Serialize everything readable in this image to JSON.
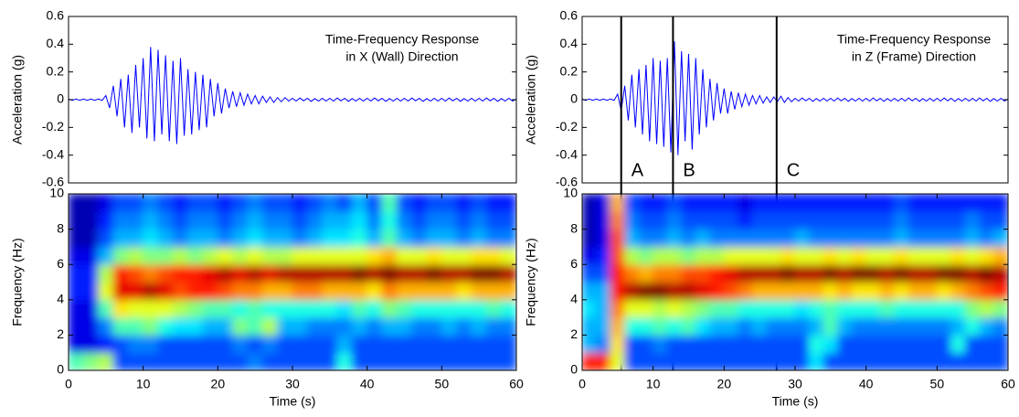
{
  "chart_data": [
    {
      "type": "line",
      "title": [
        "Time-Frequency Response",
        "in X (Wall) Direction"
      ],
      "ylabel": "Acceleration (g)",
      "color": "#0000ff",
      "xlim": [
        0,
        60
      ],
      "ylim": [
        -0.6,
        0.6
      ],
      "yticks": [
        -0.6,
        -0.4,
        -0.2,
        0,
        0.2,
        0.4,
        0.6
      ],
      "x": [
        0,
        0.5,
        1,
        1.5,
        2,
        2.5,
        3,
        3.5,
        4,
        4.5,
        5,
        5.5,
        6,
        6.5,
        7,
        7.5,
        8,
        8.5,
        9,
        9.5,
        10,
        10.5,
        11,
        11.5,
        12,
        12.5,
        13,
        13.5,
        14,
        14.5,
        15,
        15.5,
        16,
        16.5,
        17,
        17.5,
        18,
        18.5,
        19,
        19.5,
        20,
        20.5,
        21,
        21.5,
        22,
        22.5,
        23,
        23.5,
        24,
        24.5,
        25,
        25.5,
        26,
        26.5,
        27,
        27.5,
        28,
        28.5,
        29,
        29.5,
        30,
        30.5,
        31,
        31.5,
        32,
        32.5,
        33,
        33.5,
        34,
        34.5,
        35,
        35.5,
        36,
        36.5,
        37,
        37.5,
        38,
        38.5,
        39,
        39.5,
        40,
        40.5,
        41,
        41.5,
        42,
        42.5,
        43,
        43.5,
        44,
        44.5,
        45,
        45.5,
        46,
        46.5,
        47,
        47.5,
        48,
        48.5,
        49,
        49.5,
        50,
        50.5,
        51,
        51.5,
        52,
        52.5,
        53,
        53.5,
        54,
        54.5,
        55,
        55.5,
        56,
        56.5,
        57,
        57.5,
        58,
        58.5,
        59,
        59.5,
        60
      ],
      "values": [
        0.005,
        -0.005,
        0.005,
        -0.005,
        0.005,
        -0.005,
        0.005,
        -0.005,
        0.005,
        -0.005,
        0.03,
        -0.06,
        0.1,
        -0.12,
        0.15,
        -0.2,
        0.18,
        -0.24,
        0.25,
        -0.2,
        0.3,
        -0.28,
        0.38,
        -0.3,
        0.36,
        -0.25,
        0.32,
        -0.3,
        0.28,
        -0.32,
        0.3,
        -0.26,
        0.22,
        -0.25,
        0.2,
        -0.22,
        0.18,
        -0.2,
        0.15,
        -0.12,
        0.12,
        -0.1,
        0.08,
        -0.06,
        0.06,
        -0.05,
        0.05,
        -0.04,
        0.04,
        -0.03,
        0.03,
        -0.03,
        0.025,
        -0.02,
        0.02,
        -0.02,
        0.015,
        -0.015,
        0.015,
        -0.01,
        0.01,
        -0.01,
        0.012,
        -0.008,
        0.01,
        -0.012,
        0.008,
        -0.01,
        0.01,
        -0.01,
        0.01,
        -0.01,
        0.012,
        -0.008,
        0.01,
        -0.012,
        0.008,
        -0.01,
        0.01,
        -0.01,
        0.01,
        -0.01,
        0.012,
        -0.008,
        0.01,
        -0.012,
        0.008,
        -0.01,
        0.01,
        -0.01,
        0.01,
        -0.01,
        0.012,
        -0.008,
        0.01,
        -0.012,
        0.008,
        -0.01,
        0.01,
        -0.01,
        0.01,
        -0.01,
        0.012,
        -0.008,
        0.01,
        -0.012,
        0.008,
        -0.01,
        0.01,
        -0.01,
        0.01,
        -0.01,
        0.012,
        -0.008,
        0.01,
        -0.012,
        0.008,
        -0.01,
        0.01,
        -0.01,
        0.005
      ]
    },
    {
      "type": "heatmap",
      "ylabel": "Frequency (Hz)",
      "xlabel": "Time (s)",
      "colormap": "jet",
      "xlim": [
        0,
        60
      ],
      "ylim": [
        0,
        10
      ],
      "xticks": [
        0,
        10,
        20,
        30,
        40,
        50,
        60
      ],
      "yticks": [
        0,
        2,
        4,
        6,
        8,
        10
      ],
      "x_bins": [
        0,
        2,
        4,
        6,
        8,
        10,
        12,
        14,
        16,
        18,
        20,
        22,
        24,
        26,
        28,
        30,
        32,
        34,
        36,
        38,
        40,
        42,
        44,
        46,
        48,
        50,
        52,
        54,
        56,
        58,
        60
      ],
      "y_bins": [
        0,
        1,
        2,
        3,
        4,
        5,
        6,
        7,
        8,
        9,
        10
      ],
      "z": [
        [
          0.45,
          0.5,
          0.55,
          0.2,
          0.2,
          0.2,
          0.2,
          0.2,
          0.2,
          0.2,
          0.2,
          0.2,
          0.25,
          0.2,
          0.2,
          0.2,
          0.2,
          0.2,
          0.4,
          0.2,
          0.2,
          0.2,
          0.2,
          0.2,
          0.2,
          0.2,
          0.2,
          0.2,
          0.2,
          0.2
        ],
        [
          0.1,
          0.1,
          0.15,
          0.2,
          0.25,
          0.25,
          0.2,
          0.2,
          0.2,
          0.2,
          0.2,
          0.25,
          0.2,
          0.25,
          0.2,
          0.2,
          0.2,
          0.2,
          0.3,
          0.2,
          0.2,
          0.2,
          0.2,
          0.2,
          0.2,
          0.2,
          0.2,
          0.2,
          0.2,
          0.2
        ],
        [
          0.1,
          0.1,
          0.25,
          0.45,
          0.45,
          0.5,
          0.4,
          0.35,
          0.35,
          0.3,
          0.3,
          0.5,
          0.45,
          0.55,
          0.3,
          0.3,
          0.25,
          0.25,
          0.25,
          0.3,
          0.25,
          0.3,
          0.3,
          0.25,
          0.25,
          0.3,
          0.25,
          0.3,
          0.25,
          0.25
        ],
        [
          0.1,
          0.1,
          0.45,
          0.65,
          0.6,
          0.6,
          0.6,
          0.55,
          0.5,
          0.45,
          0.45,
          0.4,
          0.45,
          0.4,
          0.4,
          0.4,
          0.4,
          0.4,
          0.35,
          0.45,
          0.4,
          0.5,
          0.45,
          0.4,
          0.4,
          0.4,
          0.4,
          0.4,
          0.45,
          0.4
        ],
        [
          0.15,
          0.15,
          0.6,
          0.9,
          0.9,
          0.95,
          0.9,
          0.8,
          0.85,
          0.85,
          0.8,
          0.75,
          0.75,
          0.7,
          0.7,
          0.75,
          0.75,
          0.7,
          0.7,
          0.7,
          0.65,
          0.75,
          0.7,
          0.7,
          0.7,
          0.7,
          0.65,
          0.7,
          0.7,
          0.7
        ],
        [
          0.15,
          0.15,
          0.55,
          0.85,
          0.8,
          0.75,
          0.8,
          0.85,
          0.85,
          0.9,
          0.95,
          0.9,
          0.95,
          0.9,
          0.95,
          0.95,
          0.95,
          0.95,
          0.95,
          1,
          0.95,
          1,
          0.95,
          0.95,
          1,
          0.95,
          0.95,
          1,
          1,
          0.95
        ],
        [
          0.1,
          0.1,
          0.3,
          0.5,
          0.55,
          0.5,
          0.5,
          0.55,
          0.5,
          0.55,
          0.6,
          0.55,
          0.6,
          0.55,
          0.55,
          0.6,
          0.6,
          0.6,
          0.6,
          0.6,
          0.65,
          0.7,
          0.6,
          0.6,
          0.65,
          0.6,
          0.6,
          0.65,
          0.65,
          0.6
        ],
        [
          0.05,
          0.05,
          0.2,
          0.3,
          0.3,
          0.35,
          0.3,
          0.25,
          0.3,
          0.3,
          0.25,
          0.3,
          0.35,
          0.3,
          0.3,
          0.25,
          0.3,
          0.35,
          0.35,
          0.4,
          0.3,
          0.45,
          0.3,
          0.25,
          0.3,
          0.3,
          0.25,
          0.3,
          0.25,
          0.25
        ],
        [
          0.05,
          0.05,
          0.15,
          0.25,
          0.25,
          0.3,
          0.25,
          0.2,
          0.25,
          0.25,
          0.2,
          0.25,
          0.3,
          0.25,
          0.25,
          0.2,
          0.25,
          0.3,
          0.3,
          0.35,
          0.25,
          0.4,
          0.25,
          0.2,
          0.25,
          0.25,
          0.2,
          0.25,
          0.2,
          0.2
        ],
        [
          0.05,
          0.05,
          0.1,
          0.2,
          0.2,
          0.25,
          0.2,
          0.15,
          0.2,
          0.2,
          0.15,
          0.2,
          0.25,
          0.2,
          0.2,
          0.15,
          0.2,
          0.25,
          0.2,
          0.3,
          0.2,
          0.45,
          0.2,
          0.15,
          0.2,
          0.2,
          0.15,
          0.2,
          0.15,
          0.15
        ]
      ]
    },
    {
      "type": "line",
      "title": [
        "Time-Frequency Response",
        "in Z (Frame) Direction"
      ],
      "ylabel": "Acceleration (g)",
      "color": "#0000ff",
      "xlim": [
        0,
        60
      ],
      "ylim": [
        -0.6,
        0.6
      ],
      "yticks": [
        -0.6,
        -0.4,
        -0.2,
        0,
        0.2,
        0.4,
        0.6
      ],
      "markers": {
        "x": [
          5.5,
          12.8,
          27.4
        ],
        "labels": [
          "A",
          "B",
          "C"
        ]
      },
      "x": [
        0,
        0.5,
        1,
        1.5,
        2,
        2.5,
        3,
        3.5,
        4,
        4.5,
        5,
        5.5,
        6,
        6.5,
        7,
        7.5,
        8,
        8.5,
        9,
        9.5,
        10,
        10.5,
        11,
        11.5,
        12,
        12.5,
        13,
        13.5,
        14,
        14.5,
        15,
        15.5,
        16,
        16.5,
        17,
        17.5,
        18,
        18.5,
        19,
        19.5,
        20,
        20.5,
        21,
        21.5,
        22,
        22.5,
        23,
        23.5,
        24,
        24.5,
        25,
        25.5,
        26,
        26.5,
        27,
        27.5,
        28,
        28.5,
        29,
        29.5,
        30,
        30.5,
        31,
        31.5,
        32,
        32.5,
        33,
        33.5,
        34,
        34.5,
        35,
        35.5,
        36,
        36.5,
        37,
        37.5,
        38,
        38.5,
        39,
        39.5,
        40,
        40.5,
        41,
        41.5,
        42,
        42.5,
        43,
        43.5,
        44,
        44.5,
        45,
        45.5,
        46,
        46.5,
        47,
        47.5,
        48,
        48.5,
        49,
        49.5,
        50,
        50.5,
        51,
        51.5,
        52,
        52.5,
        53,
        53.5,
        54,
        54.5,
        55,
        55.5,
        56,
        56.5,
        57,
        57.5,
        58,
        58.5,
        59,
        59.5,
        60
      ],
      "values": [
        0.005,
        -0.005,
        0.005,
        -0.005,
        0.005,
        -0.005,
        0.005,
        -0.005,
        0.005,
        -0.005,
        0.04,
        -0.08,
        0.1,
        -0.15,
        0.18,
        -0.2,
        0.22,
        -0.25,
        0.25,
        -0.3,
        0.3,
        -0.32,
        0.28,
        -0.34,
        0.3,
        -0.38,
        0.42,
        -0.4,
        0.35,
        -0.3,
        0.33,
        -0.36,
        0.3,
        -0.25,
        0.22,
        -0.2,
        0.15,
        -0.15,
        0.12,
        -0.1,
        0.08,
        -0.1,
        0.06,
        -0.07,
        0.05,
        -0.05,
        0.04,
        -0.04,
        0.03,
        -0.03,
        0.03,
        -0.025,
        0.02,
        -0.02,
        0.02,
        -0.015,
        0.025,
        -0.02,
        0.015,
        -0.015,
        0.01,
        -0.01,
        0.012,
        -0.008,
        0.01,
        -0.012,
        0.008,
        -0.01,
        0.01,
        -0.01,
        0.01,
        -0.01,
        0.012,
        -0.008,
        0.01,
        -0.012,
        0.008,
        -0.01,
        0.01,
        -0.01,
        0.01,
        -0.01,
        0.012,
        -0.008,
        0.01,
        -0.012,
        0.008,
        -0.01,
        0.01,
        -0.01,
        0.01,
        -0.01,
        0.012,
        -0.008,
        0.01,
        -0.012,
        0.008,
        -0.01,
        0.01,
        -0.01,
        0.01,
        -0.01,
        0.012,
        -0.008,
        0.01,
        -0.012,
        0.008,
        -0.01,
        0.01,
        -0.01,
        0.01,
        -0.01,
        0.012,
        -0.008,
        0.01,
        -0.012,
        0.008,
        -0.01,
        0.01,
        -0.01,
        0.005
      ]
    },
    {
      "type": "heatmap",
      "ylabel": "Frequency (Hz)",
      "xlabel": "Time (s)",
      "colormap": "jet",
      "xlim": [
        0,
        60
      ],
      "ylim": [
        0,
        10
      ],
      "xticks": [
        0,
        10,
        20,
        30,
        40,
        50,
        60
      ],
      "yticks": [
        0,
        2,
        4,
        6,
        8,
        10
      ],
      "x_bins": [
        0,
        2,
        4,
        6,
        8,
        10,
        12,
        14,
        16,
        18,
        20,
        22,
        24,
        26,
        28,
        30,
        32,
        34,
        36,
        38,
        40,
        42,
        44,
        46,
        48,
        50,
        52,
        54,
        56,
        58,
        60
      ],
      "y_bins": [
        0,
        1,
        2,
        3,
        4,
        5,
        6,
        7,
        8,
        9,
        10
      ],
      "z": [
        [
          0.85,
          0.85,
          0.6,
          0.2,
          0.2,
          0.2,
          0.2,
          0.2,
          0.2,
          0.2,
          0.2,
          0.2,
          0.2,
          0.2,
          0.2,
          0.2,
          0.35,
          0.2,
          0.2,
          0.2,
          0.2,
          0.2,
          0.2,
          0.2,
          0.2,
          0.2,
          0.2,
          0.2,
          0.2,
          0.2
        ],
        [
          0.3,
          0.25,
          0.65,
          0.2,
          0.2,
          0.25,
          0.2,
          0.2,
          0.2,
          0.2,
          0.2,
          0.2,
          0.2,
          0.2,
          0.2,
          0.2,
          0.4,
          0.35,
          0.2,
          0.2,
          0.2,
          0.2,
          0.2,
          0.2,
          0.2,
          0.2,
          0.4,
          0.2,
          0.2,
          0.2
        ],
        [
          0.3,
          0.3,
          0.7,
          0.4,
          0.4,
          0.45,
          0.4,
          0.45,
          0.35,
          0.3,
          0.3,
          0.25,
          0.3,
          0.25,
          0.25,
          0.25,
          0.3,
          0.45,
          0.3,
          0.25,
          0.25,
          0.25,
          0.25,
          0.25,
          0.25,
          0.25,
          0.3,
          0.4,
          0.3,
          0.25
        ],
        [
          0.35,
          0.3,
          0.75,
          0.6,
          0.6,
          0.55,
          0.6,
          0.55,
          0.5,
          0.45,
          0.45,
          0.4,
          0.4,
          0.4,
          0.4,
          0.35,
          0.4,
          0.45,
          0.4,
          0.4,
          0.4,
          0.45,
          0.4,
          0.4,
          0.4,
          0.4,
          0.4,
          0.5,
          0.55,
          0.5
        ],
        [
          0.3,
          0.3,
          0.85,
          0.95,
          1,
          1,
          0.95,
          0.95,
          0.9,
          0.85,
          0.8,
          0.75,
          0.7,
          0.7,
          0.7,
          0.7,
          0.7,
          0.65,
          0.7,
          0.65,
          0.65,
          0.7,
          0.65,
          0.7,
          0.7,
          0.65,
          0.7,
          0.75,
          0.8,
          0.85
        ],
        [
          0.2,
          0.2,
          0.85,
          0.75,
          0.7,
          0.75,
          0.75,
          0.8,
          0.8,
          0.85,
          0.9,
          0.95,
          0.95,
          0.95,
          1,
          0.95,
          0.95,
          1,
          0.95,
          1,
          1,
          0.95,
          1,
          0.95,
          0.95,
          1,
          1,
          0.95,
          1,
          0.95
        ],
        [
          0.1,
          0.15,
          0.8,
          0.55,
          0.5,
          0.55,
          0.55,
          0.5,
          0.55,
          0.55,
          0.6,
          0.6,
          0.6,
          0.6,
          0.65,
          0.6,
          0.6,
          0.65,
          0.6,
          0.65,
          0.6,
          0.6,
          0.65,
          0.6,
          0.6,
          0.6,
          0.65,
          0.6,
          0.65,
          0.7
        ],
        [
          0.05,
          0.1,
          0.8,
          0.3,
          0.25,
          0.25,
          0.3,
          0.25,
          0.3,
          0.25,
          0.25,
          0.25,
          0.25,
          0.25,
          0.25,
          0.3,
          0.25,
          0.25,
          0.25,
          0.25,
          0.25,
          0.25,
          0.3,
          0.25,
          0.25,
          0.25,
          0.25,
          0.3,
          0.25,
          0.3
        ],
        [
          0.05,
          0.1,
          0.75,
          0.25,
          0.2,
          0.2,
          0.25,
          0.2,
          0.2,
          0.2,
          0.2,
          0.15,
          0.2,
          0.2,
          0.2,
          0.2,
          0.2,
          0.2,
          0.2,
          0.2,
          0.2,
          0.2,
          0.25,
          0.2,
          0.2,
          0.2,
          0.2,
          0.25,
          0.2,
          0.2
        ],
        [
          0.05,
          0.1,
          0.7,
          0.2,
          0.15,
          0.15,
          0.2,
          0.15,
          0.15,
          0.15,
          0.15,
          0.1,
          0.15,
          0.15,
          0.15,
          0.15,
          0.15,
          0.15,
          0.15,
          0.15,
          0.15,
          0.15,
          0.2,
          0.15,
          0.15,
          0.15,
          0.15,
          0.15,
          0.15,
          0.15
        ]
      ]
    }
  ]
}
